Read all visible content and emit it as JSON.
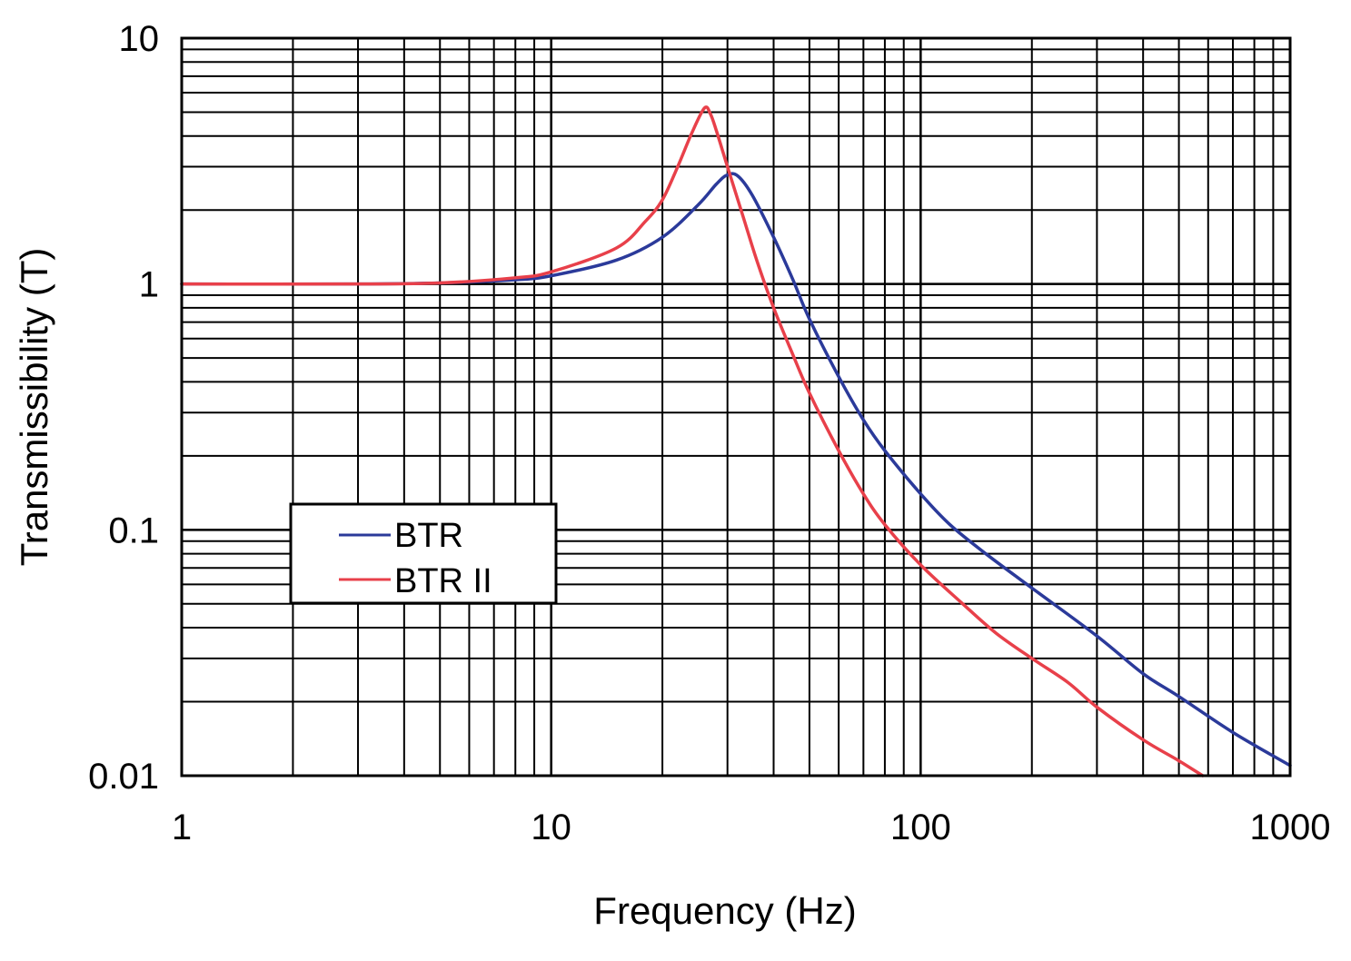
{
  "chart_data": {
    "type": "line",
    "title": "",
    "xlabel": "Frequency (Hz)",
    "ylabel": "Transmissibility (T)",
    "x_scale": "log",
    "y_scale": "log",
    "xlim": [
      1,
      1000
    ],
    "ylim": [
      0.01,
      10
    ],
    "grid": true,
    "x_ticks": [
      "1",
      "10",
      "100",
      "1000"
    ],
    "y_ticks": [
      "0.01",
      "0.1",
      "1",
      "10"
    ],
    "legend": {
      "placement": "lower-left"
    },
    "series": [
      {
        "name": "BTR",
        "color": "#2b3a9a",
        "points": [
          [
            1,
            1.0
          ],
          [
            3,
            1.0
          ],
          [
            5,
            1.01
          ],
          [
            8,
            1.04
          ],
          [
            10,
            1.08
          ],
          [
            15,
            1.25
          ],
          [
            20,
            1.55
          ],
          [
            25,
            2.1
          ],
          [
            28,
            2.55
          ],
          [
            30,
            2.78
          ],
          [
            32,
            2.75
          ],
          [
            35,
            2.3
          ],
          [
            40,
            1.55
          ],
          [
            45,
            1.05
          ],
          [
            50,
            0.72
          ],
          [
            60,
            0.42
          ],
          [
            70,
            0.28
          ],
          [
            80,
            0.21
          ],
          [
            100,
            0.14
          ],
          [
            120,
            0.105
          ],
          [
            150,
            0.08
          ],
          [
            200,
            0.058
          ],
          [
            300,
            0.037
          ],
          [
            400,
            0.026
          ],
          [
            500,
            0.021
          ],
          [
            700,
            0.015
          ],
          [
            1000,
            0.011
          ]
        ]
      },
      {
        "name": "BTR II",
        "color": "#e8404a",
        "points": [
          [
            1,
            1.0
          ],
          [
            3,
            1.0
          ],
          [
            5,
            1.01
          ],
          [
            8,
            1.06
          ],
          [
            10,
            1.12
          ],
          [
            15,
            1.4
          ],
          [
            18,
            1.8
          ],
          [
            20,
            2.2
          ],
          [
            22,
            3.0
          ],
          [
            24,
            4.1
          ],
          [
            26,
            5.2
          ],
          [
            27,
            4.9
          ],
          [
            28,
            4.2
          ],
          [
            30,
            3.0
          ],
          [
            33,
            1.9
          ],
          [
            36,
            1.25
          ],
          [
            40,
            0.8
          ],
          [
            45,
            0.52
          ],
          [
            50,
            0.36
          ],
          [
            60,
            0.21
          ],
          [
            70,
            0.14
          ],
          [
            80,
            0.105
          ],
          [
            100,
            0.072
          ],
          [
            130,
            0.05
          ],
          [
            160,
            0.038
          ],
          [
            200,
            0.03
          ],
          [
            250,
            0.024
          ],
          [
            300,
            0.019
          ],
          [
            400,
            0.014
          ],
          [
            500,
            0.0115
          ],
          [
            580,
            0.01
          ]
        ]
      }
    ]
  }
}
